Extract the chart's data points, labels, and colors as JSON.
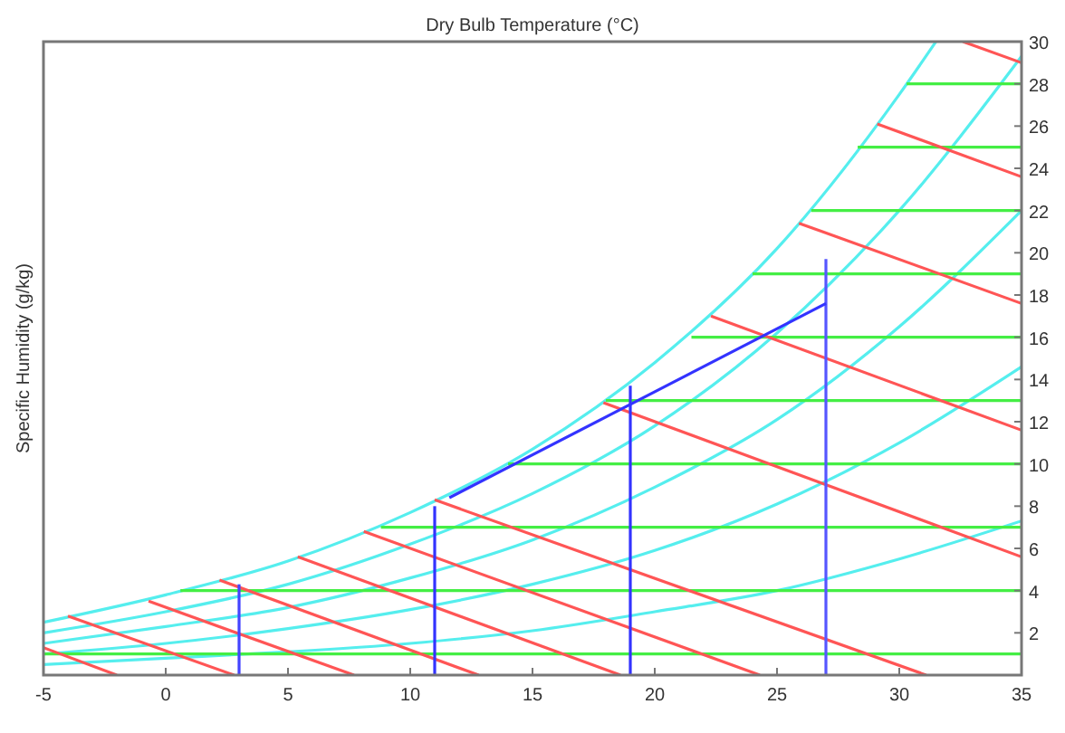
{
  "chart_data": {
    "type": "line",
    "xlabel": "Dry Bulb Temperature (°C)",
    "ylabel": "Specific Humidity (g/kg)",
    "xlim": [
      -5,
      35
    ],
    "xticks": [
      -5,
      0,
      5,
      10,
      15,
      20,
      25,
      30,
      35
    ],
    "ylim": [
      0,
      30
    ],
    "yticks": [
      2,
      4,
      6,
      8,
      10,
      12,
      14,
      16,
      18,
      20,
      22,
      24,
      26,
      28,
      30
    ],
    "series": [
      {
        "color": "#55eeee",
        "x": [
          -5,
          0,
          5,
          10,
          15,
          20,
          25,
          30,
          31.5
        ],
        "values": [
          2.5,
          3.8,
          5.4,
          7.7,
          10.7,
          14.8,
          20.2,
          27.5,
          30
        ]
      },
      {
        "color": "#55eeee",
        "x": [
          -5,
          0,
          5,
          10,
          15,
          20,
          25,
          30,
          35
        ],
        "values": [
          2.0,
          3.0,
          4.3,
          6.2,
          8.6,
          11.8,
          16.2,
          22.0,
          29.3
        ]
      },
      {
        "color": "#55eeee",
        "x": [
          -5,
          0,
          5,
          10,
          15,
          20,
          25,
          30,
          35
        ],
        "values": [
          1.5,
          2.3,
          3.2,
          4.6,
          6.4,
          8.9,
          12.1,
          16.5,
          22.0
        ]
      },
      {
        "color": "#55eeee",
        "x": [
          -5,
          0,
          5,
          10,
          15,
          20,
          25,
          30,
          35
        ],
        "values": [
          1.0,
          1.5,
          2.2,
          3.1,
          4.3,
          5.9,
          8.1,
          11.0,
          14.6
        ]
      },
      {
        "color": "#55eeee",
        "x": [
          -5,
          0,
          5,
          10,
          15,
          20,
          25,
          30,
          35
        ],
        "values": [
          0.5,
          0.8,
          1.1,
          1.5,
          2.1,
          3.0,
          4.0,
          5.5,
          7.3
        ]
      },
      {
        "color": "#44ee44",
        "x": [
          -5,
          35
        ],
        "values": [
          1,
          1
        ]
      },
      {
        "color": "#44ee44",
        "x": [
          0.6,
          35
        ],
        "values": [
          4,
          4
        ]
      },
      {
        "color": "#44ee44",
        "x": [
          8.8,
          35
        ],
        "values": [
          7,
          7
        ]
      },
      {
        "color": "#44ee44",
        "x": [
          14,
          35
        ],
        "values": [
          10,
          10
        ]
      },
      {
        "color": "#44ee44",
        "x": [
          18,
          35
        ],
        "values": [
          13,
          13
        ]
      },
      {
        "color": "#44ee44",
        "x": [
          21.5,
          35
        ],
        "values": [
          16,
          16
        ]
      },
      {
        "color": "#44ee44",
        "x": [
          24,
          35
        ],
        "values": [
          19,
          19
        ]
      },
      {
        "color": "#44ee44",
        "x": [
          26.4,
          35
        ],
        "values": [
          22,
          22
        ]
      },
      {
        "color": "#44ee44",
        "x": [
          28.3,
          35
        ],
        "values": [
          25,
          25
        ]
      },
      {
        "color": "#44ee44",
        "x": [
          30.3,
          35
        ],
        "values": [
          28,
          28
        ]
      },
      {
        "color": "#ff5555",
        "x": [
          -5,
          -2
        ],
        "values": [
          1.3,
          0
        ]
      },
      {
        "color": "#ff5555",
        "x": [
          -4,
          2.8
        ],
        "values": [
          2.8,
          0
        ]
      },
      {
        "color": "#ff5555",
        "x": [
          -0.7,
          7.7
        ],
        "values": [
          3.5,
          0
        ]
      },
      {
        "color": "#ff5555",
        "x": [
          2.2,
          12.8
        ],
        "values": [
          4.5,
          0
        ]
      },
      {
        "color": "#ff5555",
        "x": [
          5.4,
          18.6
        ],
        "values": [
          5.6,
          0
        ]
      },
      {
        "color": "#ff5555",
        "x": [
          8.1,
          24.3
        ],
        "values": [
          6.8,
          0
        ]
      },
      {
        "color": "#ff5555",
        "x": [
          11,
          31.1
        ],
        "values": [
          8.3,
          0
        ]
      },
      {
        "color": "#ff5555",
        "x": [
          17.9,
          35
        ],
        "values": [
          12.9,
          5.6
        ]
      },
      {
        "color": "#ff5555",
        "x": [
          22.3,
          35
        ],
        "values": [
          17.0,
          11.6
        ]
      },
      {
        "color": "#ff5555",
        "x": [
          25.9,
          35
        ],
        "values": [
          21.4,
          17.6
        ]
      },
      {
        "color": "#ff5555",
        "x": [
          29.1,
          35
        ],
        "values": [
          26.1,
          23.6
        ]
      },
      {
        "color": "#ff5555",
        "x": [
          32.6,
          35
        ],
        "values": [
          30,
          29
        ]
      },
      {
        "color": "#4444ff",
        "x": [
          3,
          3
        ],
        "values": [
          0,
          4.3
        ]
      },
      {
        "color": "#3333ff",
        "x": [
          11,
          11
        ],
        "values": [
          0,
          8
        ]
      },
      {
        "color": "#3333ff",
        "x": [
          19,
          19
        ],
        "values": [
          0,
          13.7
        ]
      },
      {
        "color": "#5555ff",
        "x": [
          27,
          27
        ],
        "values": [
          0,
          19.7
        ]
      },
      {
        "color": "#3333ff",
        "x": [
          11.6,
          27
        ],
        "values": [
          8.4,
          17.6
        ]
      }
    ]
  }
}
